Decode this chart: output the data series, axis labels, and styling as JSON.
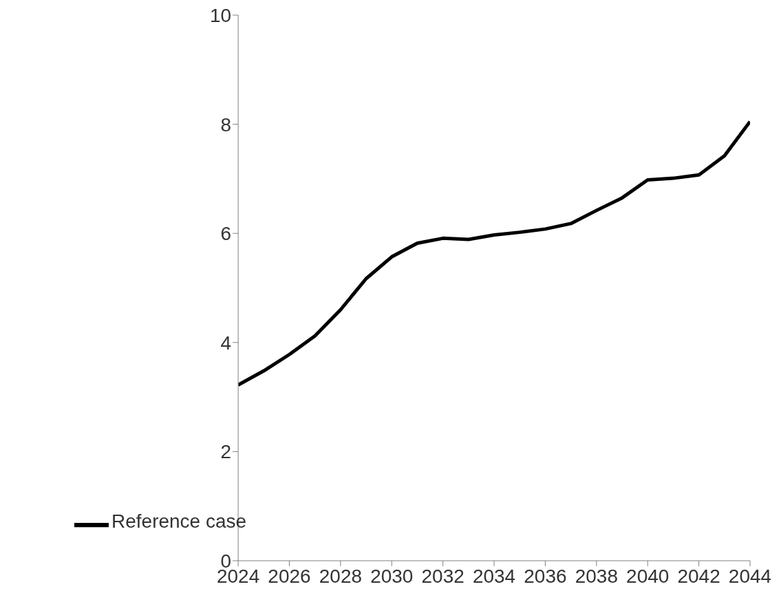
{
  "chart_data": {
    "type": "line",
    "x": [
      2024,
      2025,
      2026,
      2027,
      2028,
      2029,
      2030,
      2031,
      2032,
      2033,
      2034,
      2035,
      2036,
      2037,
      2038,
      2039,
      2040,
      2041,
      2042,
      2043,
      2044
    ],
    "series": [
      {
        "name": "Reference case",
        "color": "#000000",
        "values": [
          3.22,
          3.48,
          3.78,
          4.12,
          4.6,
          5.17,
          5.57,
          5.82,
          5.91,
          5.89,
          5.97,
          6.02,
          6.08,
          6.18,
          6.42,
          6.65,
          6.98,
          7.01,
          7.07,
          7.42,
          8.05
        ]
      }
    ],
    "xlim": [
      2024,
      2044
    ],
    "xticks": [
      2024,
      2026,
      2028,
      2030,
      2032,
      2034,
      2036,
      2038,
      2040,
      2042,
      2044
    ],
    "ylim": [
      0,
      10
    ],
    "yticks": [
      0,
      2,
      4,
      6,
      8,
      10
    ],
    "grid": false,
    "legend": "bottom left",
    "marker": "none",
    "line_style": "solid"
  }
}
